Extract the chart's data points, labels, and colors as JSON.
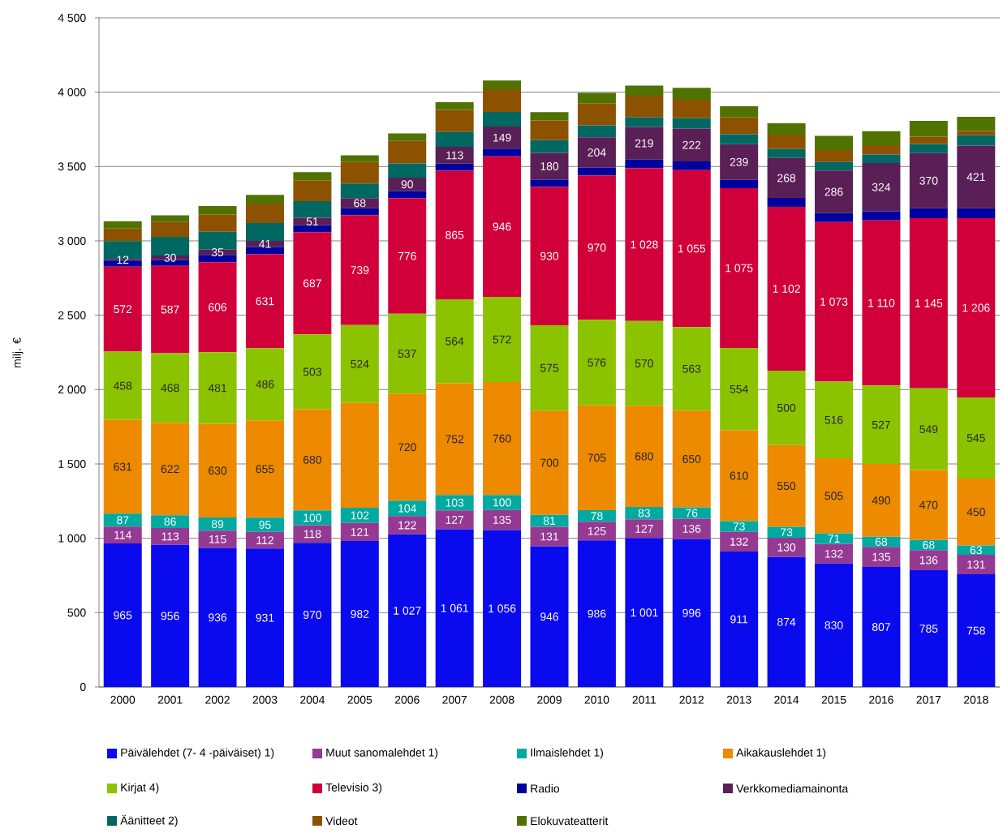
{
  "chart_data": {
    "type": "bar",
    "stacked": true,
    "ylabel": "milj. €",
    "grid": "y",
    "legend": "bottom",
    "categories": [
      "2000",
      "2001",
      "2002",
      "2003",
      "2004",
      "2005",
      "2006",
      "2007",
      "2008",
      "2009",
      "2010",
      "2011",
      "2012",
      "2013",
      "2014",
      "2015",
      "2016",
      "2017",
      "2018"
    ],
    "ylim": [
      0,
      4500
    ],
    "yticks": [
      0,
      500,
      {
        "value": 1000,
        "label": "1 000"
      },
      {
        "value": 1500,
        "label": "1 500"
      },
      {
        "value": 2000,
        "label": "2 000"
      },
      {
        "value": 2500,
        "label": "2 500"
      },
      {
        "value": 3000,
        "label": "3 000"
      },
      {
        "value": 3500,
        "label": "3 500"
      },
      {
        "value": 4000,
        "label": "4 000"
      },
      {
        "value": 4500,
        "label": "4 500"
      }
    ],
    "series": [
      {
        "name": "Päivälehdet (7- 4 -päiväiset) 1)",
        "color": "#0a0aef",
        "values": [
          965,
          956,
          936,
          931,
          970,
          982,
          1027,
          1061,
          1056,
          946,
          986,
          1001,
          996,
          911,
          874,
          830,
          807,
          785,
          758
        ],
        "value_labels": [
          "965",
          "956",
          "936",
          "931",
          "970",
          "982",
          "1 027",
          "1 061",
          "1 056",
          "946",
          "986",
          "1 001",
          "996",
          "911",
          "874",
          "830",
          "807",
          "785",
          "758"
        ]
      },
      {
        "name": "Muut sanomalehdet 1)",
        "color": "#953a93",
        "values": [
          114,
          113,
          115,
          112,
          118,
          121,
          122,
          127,
          135,
          131,
          125,
          127,
          136,
          132,
          130,
          132,
          135,
          136,
          131
        ],
        "value_labels": [
          "114",
          "113",
          "115",
          "112",
          "118",
          "121",
          "122",
          "127",
          "135",
          "131",
          "125",
          "127",
          "136",
          "132",
          "130",
          "132",
          "135",
          "136",
          "131"
        ]
      },
      {
        "name": "Ilmaislehdet 1)",
        "color": "#00aaa0",
        "values": [
          87,
          86,
          89,
          95,
          100,
          102,
          104,
          103,
          100,
          81,
          78,
          83,
          76,
          73,
          73,
          71,
          68,
          68,
          63
        ],
        "value_labels": [
          "87",
          "86",
          "89",
          "95",
          "100",
          "102",
          "104",
          "103",
          "100",
          "81",
          "78",
          "83",
          "76",
          "73",
          "73",
          "71",
          "68",
          "68",
          "63"
        ]
      },
      {
        "name": "Aikakauslehdet 1)",
        "color": "#ee8a00",
        "values": [
          631,
          622,
          630,
          655,
          680,
          705,
          720,
          752,
          760,
          700,
          705,
          680,
          650,
          610,
          550,
          505,
          490,
          470,
          450
        ],
        "value_labels": [
          "631",
          "622",
          "630",
          "655",
          "680",
          null,
          "720",
          "752",
          "760",
          "700",
          "705",
          "680",
          "650",
          "610",
          "550",
          "505",
          "490",
          "470",
          "450"
        ]
      },
      {
        "name": "Kirjat 4)",
        "color": "#8cc300",
        "values": [
          458,
          468,
          481,
          486,
          503,
          524,
          537,
          564,
          572,
          575,
          576,
          570,
          563,
          554,
          500,
          516,
          527,
          549,
          545
        ],
        "value_labels": [
          "458",
          "468",
          "481",
          "486",
          "503",
          "524",
          "537",
          "564",
          "572",
          "575",
          "576",
          "570",
          "563",
          "554",
          "500",
          "516",
          "527",
          "549",
          "545"
        ]
      },
      {
        "name": "Televisio 3)",
        "color": "#d1003a",
        "values": [
          572,
          587,
          606,
          631,
          687,
          739,
          776,
          865,
          946,
          930,
          970,
          1028,
          1055,
          1075,
          1102,
          1073,
          1110,
          1145,
          1206
        ],
        "value_labels": [
          "572",
          "587",
          "606",
          "631",
          "687",
          "739",
          "776",
          "865",
          "946",
          "930",
          "970",
          "1 028",
          "1 055",
          "1 075",
          "1 102",
          "1 073",
          "1 110",
          "1 145",
          "1 206"
        ]
      },
      {
        "name": "Radio",
        "color": "#00009e",
        "values": [
          40,
          40,
          49,
          49,
          47,
          47,
          49,
          47,
          51,
          49,
          53,
          58,
          58,
          56,
          60,
          60,
          62,
          67,
          67
        ]
      },
      {
        "name": "Verkkomediamainonta",
        "color": "#5a1f56",
        "values": [
          12,
          30,
          35,
          41,
          51,
          68,
          90,
          113,
          149,
          180,
          204,
          219,
          222,
          239,
          268,
          286,
          324,
          370,
          421
        ],
        "value_labels": [
          "12",
          "30",
          "35",
          "41",
          "51",
          "68",
          "90",
          "113",
          "149",
          "180",
          "204",
          "219",
          "222",
          "239",
          "268",
          "286",
          "324",
          "370",
          "421"
        ]
      },
      {
        "name": "Äänitteet 2)",
        "color": "#006860",
        "values": [
          120,
          125,
          120,
          120,
          111,
          98,
          96,
          100,
          98,
          85,
          80,
          65,
          69,
          67,
          60,
          58,
          58,
          62,
          69
        ]
      },
      {
        "name": "Videot",
        "color": "#8c5200",
        "values": [
          84,
          100,
          116,
          131,
          140,
          145,
          151,
          149,
          153,
          133,
          149,
          145,
          124,
          113,
          98,
          80,
          62,
          49,
          29
        ]
      },
      {
        "name": "Elokuvateatterit",
        "color": "#507200",
        "values": [
          49,
          45,
          58,
          58,
          55,
          45,
          51,
          51,
          58,
          56,
          69,
          69,
          80,
          76,
          76,
          95,
          95,
          106,
          96
        ]
      }
    ]
  }
}
